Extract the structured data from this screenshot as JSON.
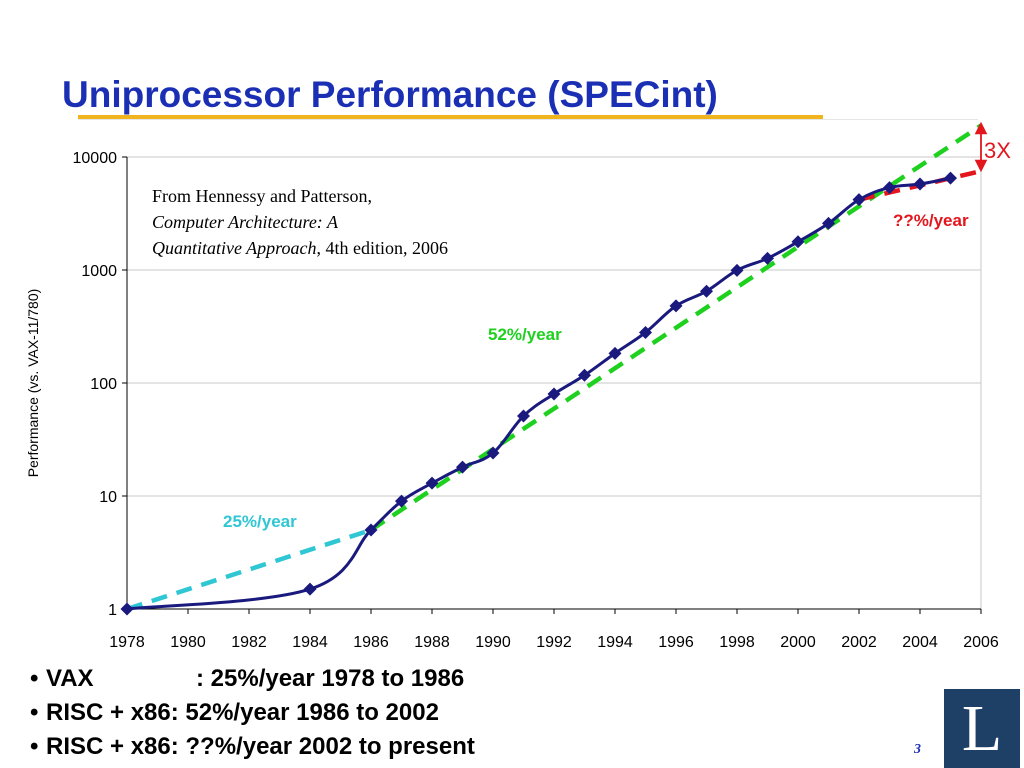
{
  "title": "Uniprocessor Performance (SPECint)",
  "chart_data": {
    "type": "line",
    "ylabel": "Performance (vs. VAX-11/780)",
    "xlabel": "",
    "yscale": "log",
    "ylim": [
      1,
      10000
    ],
    "xlim": [
      1978,
      2006
    ],
    "yticks": [
      "1",
      "10",
      "100",
      "1000",
      "10000"
    ],
    "xticks": [
      "1978",
      "1980",
      "1982",
      "1984",
      "1986",
      "1988",
      "1990",
      "1992",
      "1994",
      "1996",
      "1998",
      "2000",
      "2002",
      "2004",
      "2006"
    ],
    "grid": "horizontal",
    "series": [
      {
        "color": "#1a1a7e",
        "marker": "diamond",
        "x": [
          1978,
          1984,
          1986,
          1987,
          1988,
          1989,
          1990,
          1991,
          1992,
          1993,
          1994,
          1995,
          1996,
          1997,
          1998,
          1999,
          2000,
          2001,
          2002,
          2003,
          2004,
          2005
        ],
        "y": [
          1,
          1.5,
          5,
          9,
          13,
          18,
          24,
          51,
          80,
          117,
          183,
          280,
          481,
          649,
          993,
          1267,
          1779,
          2584,
          4195,
          5364,
          5764,
          6505
        ]
      }
    ],
    "trend_lines": [
      {
        "label": "25%/year",
        "color": "#2fc7d4",
        "x": [
          1978,
          1986
        ],
        "y": [
          1,
          5
        ]
      },
      {
        "label": "52%/year",
        "color": "#1fd11f",
        "x": [
          1986,
          2006
        ],
        "y": [
          5,
          19000
        ]
      },
      {
        "label": "??%/year",
        "color": "#e3161d",
        "x": [
          2002,
          2006
        ],
        "y": [
          4195,
          7500
        ]
      }
    ],
    "annotations": {
      "source_line1": "From Hennessy and Patterson,",
      "source_book": "Computer Architecture: A Quantitative Approach",
      "source_edition": ", 4th edition, 2006",
      "gap_label": "3X"
    }
  },
  "bullets": [
    {
      "name": "VAX",
      "text": ": 25%/year 1978 to 1986"
    },
    {
      "name": "RISC + x86",
      "text": ": 52%/year 1986 to 2002"
    },
    {
      "name": "RISC + x86",
      "text": ": ??%/year 2002 to present"
    }
  ],
  "logo_letter": "L",
  "page_number": "3",
  "colors": {
    "title": "#1a2fb4",
    "accent_rule": "#f0b51e",
    "logo_bg": "#1e3f66"
  }
}
